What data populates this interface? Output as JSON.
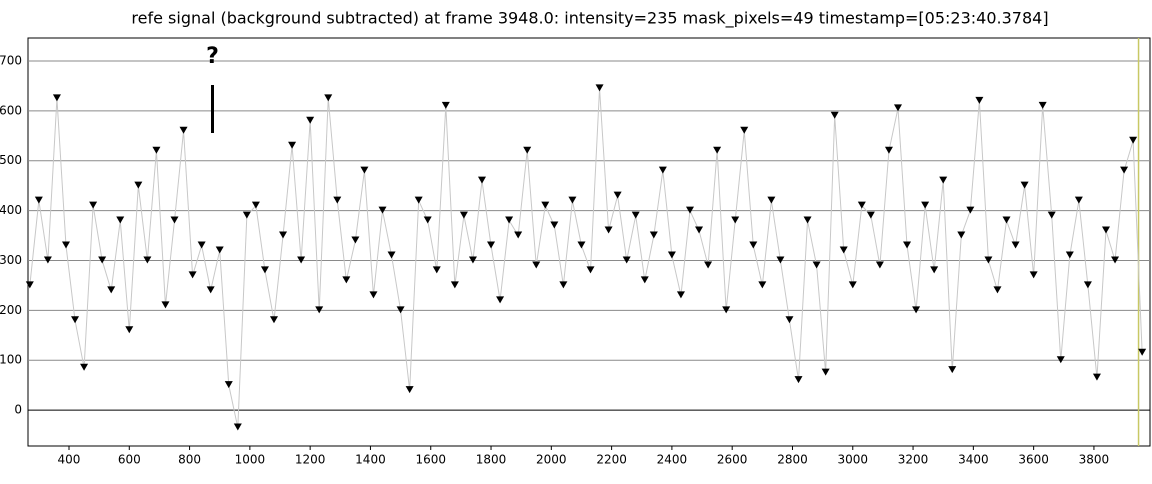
{
  "chart_data": {
    "type": "line",
    "title": "refe signal (background subtracted) at frame 3948.0: intensity=235 mask_pixels=49 timestamp=[05:23:40.3784]",
    "annotation": "?",
    "annotation_x": 876,
    "current_frame": 3948,
    "x": [
      270,
      300,
      330,
      360,
      390,
      420,
      450,
      480,
      510,
      540,
      570,
      600,
      630,
      660,
      690,
      720,
      750,
      780,
      810,
      840,
      870,
      900,
      930,
      960,
      990,
      1020,
      1050,
      1080,
      1110,
      1140,
      1170,
      1200,
      1230,
      1260,
      1290,
      1320,
      1350,
      1380,
      1410,
      1440,
      1470,
      1500,
      1530,
      1560,
      1590,
      1620,
      1650,
      1680,
      1710,
      1740,
      1770,
      1800,
      1830,
      1860,
      1890,
      1920,
      1950,
      1980,
      2010,
      2040,
      2070,
      2100,
      2130,
      2160,
      2190,
      2220,
      2250,
      2280,
      2310,
      2340,
      2370,
      2400,
      2430,
      2460,
      2490,
      2520,
      2550,
      2580,
      2610,
      2640,
      2670,
      2700,
      2730,
      2760,
      2790,
      2820,
      2850,
      2880,
      2910,
      2940,
      2970,
      3000,
      3030,
      3060,
      3090,
      3120,
      3150,
      3180,
      3210,
      3240,
      3270,
      3300,
      3330,
      3360,
      3390,
      3420,
      3450,
      3480,
      3510,
      3540,
      3570,
      3600,
      3630,
      3660,
      3690,
      3720,
      3750,
      3780,
      3810,
      3840,
      3870,
      3900,
      3930,
      3960
    ],
    "series": [
      {
        "color": "#000000",
        "line_color": "#c8c8c8",
        "values": [
          250,
          420,
          300,
          625,
          330,
          180,
          85,
          410,
          300,
          240,
          380,
          160,
          450,
          300,
          520,
          210,
          380,
          560,
          270,
          330,
          240,
          320,
          50,
          -35,
          390,
          410,
          280,
          180,
          350,
          530,
          300,
          580,
          200,
          625,
          420,
          260,
          340,
          480,
          230,
          400,
          310,
          200,
          40,
          420,
          380,
          280,
          610,
          250,
          390,
          300,
          460,
          330,
          220,
          380,
          350,
          520,
          290,
          410,
          370,
          250,
          420,
          330,
          280,
          645,
          360,
          430,
          300,
          390,
          260,
          350,
          480,
          310,
          230,
          400,
          360,
          290,
          520,
          200,
          380,
          560,
          330,
          250,
          420,
          300,
          180,
          60,
          380,
          290,
          75,
          590,
          320,
          250,
          410,
          390,
          290,
          520,
          605,
          330,
          200,
          410,
          280,
          460,
          80,
          350,
          400,
          620,
          300,
          240,
          380,
          330,
          450,
          270,
          610,
          390,
          100,
          310,
          420,
          250,
          65,
          360,
          300,
          480,
          540,
          115
        ]
      }
    ],
    "xlim": [
      264,
      3986
    ],
    "ylim": [
      -72,
      746
    ],
    "xticks": [
      400,
      600,
      800,
      1000,
      1200,
      1400,
      1600,
      1800,
      2000,
      2200,
      2400,
      2600,
      2800,
      3000,
      3200,
      3400,
      3600,
      3800
    ],
    "yticks": [
      0,
      100,
      200,
      300,
      400,
      500,
      600,
      700
    ],
    "grid": true
  }
}
